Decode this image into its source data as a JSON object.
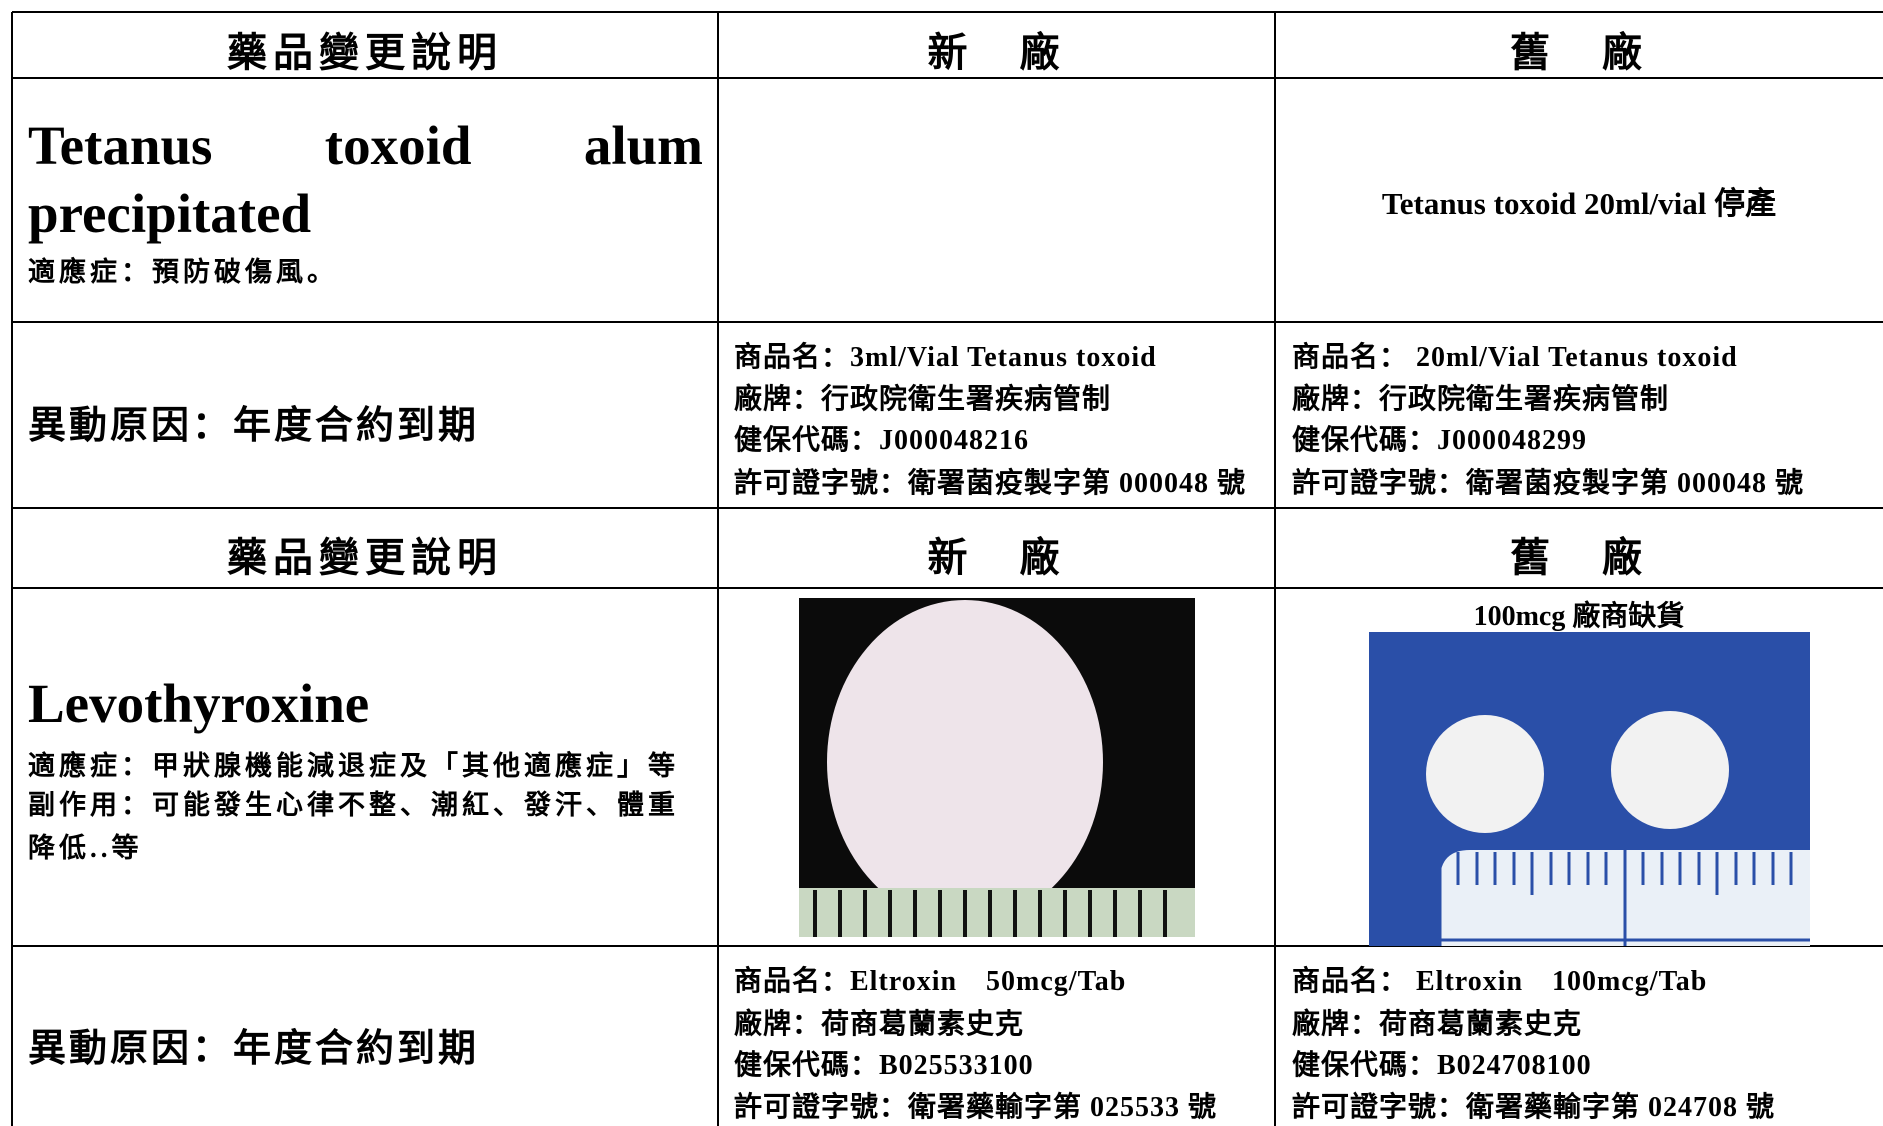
{
  "section1": {
    "header": [
      "藥品變更說明",
      "新　廠",
      "舊　廠"
    ],
    "drug_name": "Tetanus toxoid alum precipitated",
    "indication": "適應症：預防破傷風。",
    "old_factory_note": "Tetanus toxoid 20ml/vial  停產",
    "reason": "異動原因：年度合約到期",
    "new_details": [
      "商品名：3ml/Vial Tetanus toxoid",
      "廠牌：行政院衛生署疾病管制",
      "健保代碼：J000048216",
      "許可證字號：衛署菌疫製字第 000048 號"
    ],
    "old_details": [
      "商品名： 20ml/Vial Tetanus toxoid",
      "廠牌：行政院衛生署疾病管制",
      "健保代碼：J000048299",
      "許可證字號：衛署菌疫製字第 000048 號"
    ]
  },
  "section2": {
    "header": [
      "藥品變更說明",
      "新　廠",
      "舊　廠"
    ],
    "drug_name": "Levothyroxine",
    "indication": "適應症：甲狀腺機能減退症及「其他適應症」等",
    "side_effects": "副作用：可能發生心律不整、潮紅、發汗、體重降低..等",
    "old_image_caption": "100mcg 廠商缺貨",
    "reason": "異動原因：年度合約到期",
    "new_details": [
      "商品名：Eltroxin　50mcg/Tab",
      "廠牌：荷商葛蘭素史克",
      "健保代碼：B025533100",
      "許可證字號：衛署藥輸字第 025533 號"
    ],
    "old_details": [
      "商品名： Eltroxin　100mcg/Tab",
      "廠牌：荷商葛蘭素史克",
      "健保代碼：B024708100",
      "許可證字號：衛署藥輸字第 024708 號"
    ]
  }
}
